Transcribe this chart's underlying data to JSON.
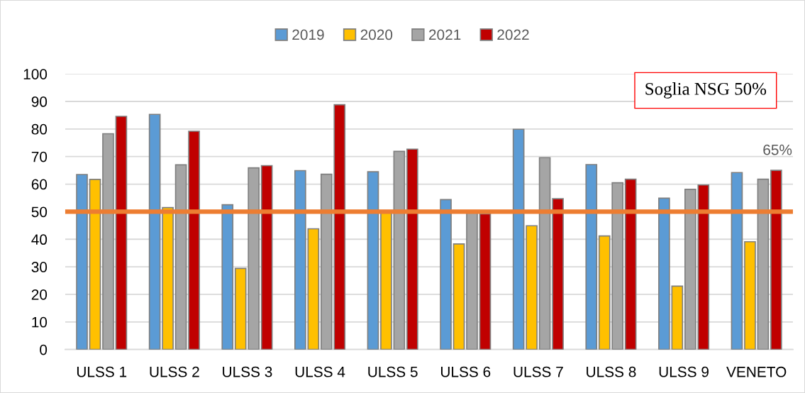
{
  "chart_data": {
    "type": "bar",
    "categories": [
      "ULSS 1",
      "ULSS 2",
      "ULSS 3",
      "ULSS 4",
      "ULSS 5",
      "ULSS 6",
      "ULSS 7",
      "ULSS 8",
      "ULSS 9",
      "VENETO"
    ],
    "series": [
      {
        "name": "2019",
        "color": "#5b9bd5",
        "values": [
          63.5,
          85.3,
          52.5,
          64.9,
          64.5,
          54.4,
          79.9,
          67.1,
          54.9,
          64.2
        ]
      },
      {
        "name": "2020",
        "color": "#ffc000",
        "values": [
          61.7,
          51.5,
          29.4,
          43.8,
          49.6,
          38.3,
          44.9,
          41.2,
          23.0,
          39.1
        ]
      },
      {
        "name": "2021",
        "color": "#a5a5a5",
        "values": [
          78.3,
          67.0,
          65.9,
          63.6,
          71.9,
          49.9,
          69.6,
          60.5,
          58.1,
          61.8
        ]
      },
      {
        "name": "2022",
        "color": "#c00000",
        "values": [
          84.6,
          79.2,
          66.7,
          88.8,
          72.7,
          49.2,
          54.7,
          61.8,
          59.7,
          65
        ]
      }
    ],
    "ylim": [
      0,
      100
    ],
    "yticks": [
      0,
      10,
      20,
      30,
      40,
      50,
      60,
      70,
      80,
      90,
      100
    ],
    "grid": "y",
    "legend": "top",
    "ref_lines": [
      {
        "axis": "y",
        "value": 50,
        "color": "#ed7d31"
      }
    ],
    "annotations": [
      "Soglia NSG 50%",
      "65%"
    ]
  }
}
